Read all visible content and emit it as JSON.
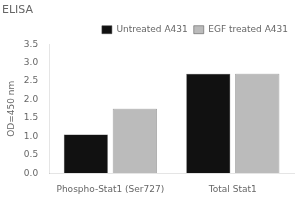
{
  "chart_data": {
    "type": "bar",
    "title": "ELISA",
    "categories": [
      "Phospho-Stat1 (Ser727)",
      "Total Stat1"
    ],
    "series": [
      {
        "name": "Untreated A431",
        "color": "#111111",
        "values": [
          1.05,
          2.7
        ]
      },
      {
        "name": "EGF treated A431",
        "color": "#bbbbbb",
        "values": [
          1.75,
          2.7
        ]
      }
    ],
    "y_label": "OD=450 nm",
    "ylim": [
      0,
      3.5
    ],
    "yticks": [
      {
        "value": 0.0,
        "label": "0.0"
      },
      0.5,
      {
        "value": 1.0,
        "label": "1.0"
      },
      1.5,
      {
        "value": 2.0,
        "label": "2.0"
      },
      2.5,
      {
        "value": 3.0,
        "label": "3.0"
      },
      3.5
    ],
    "legend": "upper right",
    "grid": false
  }
}
